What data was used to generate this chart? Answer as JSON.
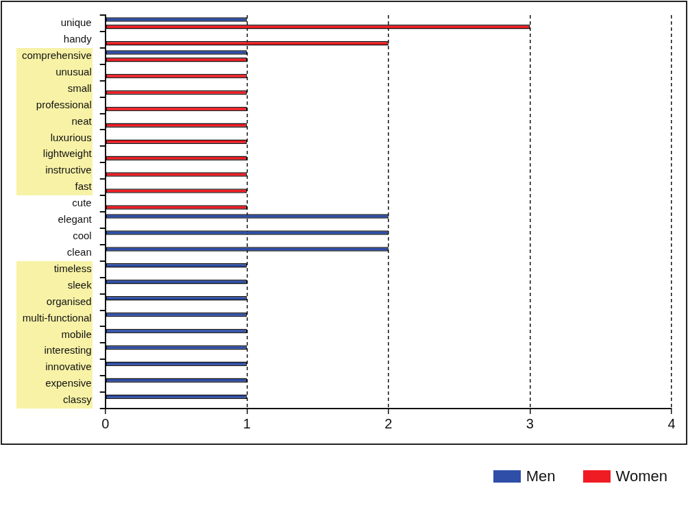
{
  "chart_data": {
    "type": "bar",
    "orientation": "horizontal",
    "categories": [
      "unique",
      "handy",
      "comprehensive",
      "unusual",
      "small",
      "professional",
      "neat",
      "luxurious",
      "lightweight",
      "instructive",
      "fast",
      "cute",
      "elegant",
      "cool",
      "clean",
      "timeless",
      "sleek",
      "organised",
      "multi-functional",
      "mobile",
      "interesting",
      "innovative",
      "expensive",
      "classy"
    ],
    "series": [
      {
        "name": "Men",
        "color": "#2e4ea8",
        "values": [
          1,
          null,
          1,
          null,
          null,
          null,
          null,
          null,
          null,
          null,
          null,
          null,
          2,
          2,
          2,
          1,
          1,
          1,
          1,
          1,
          1,
          1,
          1,
          1
        ]
      },
      {
        "name": "Women",
        "color": "#f01c24",
        "values": [
          3,
          2,
          1,
          1,
          1,
          1,
          1,
          1,
          1,
          1,
          1,
          1,
          null,
          null,
          null,
          null,
          null,
          null,
          null,
          null,
          null,
          null,
          null,
          null
        ]
      }
    ],
    "xlim": [
      0,
      4
    ],
    "xticks": [
      0,
      1,
      2,
      3,
      4
    ],
    "grid": "x",
    "legend": "bottom right"
  }
}
